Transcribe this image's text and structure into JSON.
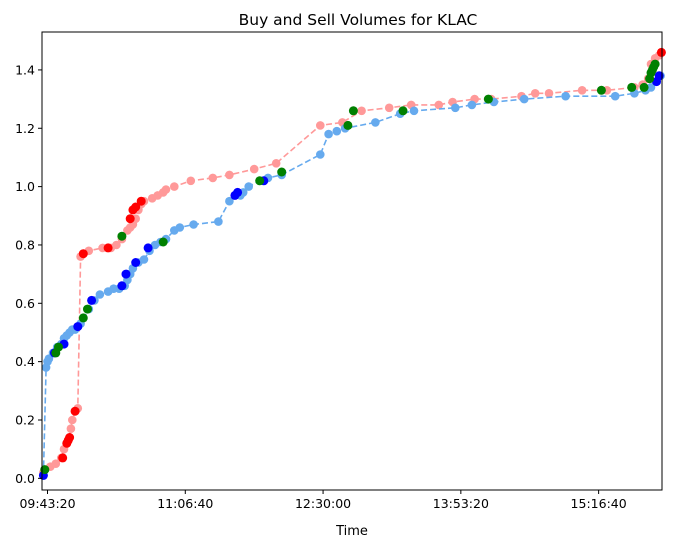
{
  "chart_data": {
    "type": "line",
    "title": "Buy and Sell Volumes for KLAC",
    "xlabel": "Time",
    "ylabel": "",
    "x_axis_unit": "seconds since midnight",
    "xlim": [
      34800,
      57300
    ],
    "ylim": [
      -0.04,
      1.53
    ],
    "x_ticks": [
      {
        "value": 35000,
        "label": "09:43:20"
      },
      {
        "value": 40000,
        "label": "11:06:40"
      },
      {
        "value": 45000,
        "label": "12:30:00"
      },
      {
        "value": 50000,
        "label": "13:53:20"
      },
      {
        "value": 55000,
        "label": "15:16:40"
      }
    ],
    "y_ticks": [
      {
        "value": 0.0,
        "label": "0.0"
      },
      {
        "value": 0.2,
        "label": "0.2"
      },
      {
        "value": 0.4,
        "label": "0.4"
      },
      {
        "value": 0.6,
        "label": "0.6"
      },
      {
        "value": 0.8,
        "label": "0.8"
      },
      {
        "value": 1.0,
        "label": "1.0"
      },
      {
        "value": 1.2,
        "label": "1.2"
      },
      {
        "value": 1.4,
        "label": "1.4"
      }
    ],
    "grid": false,
    "legend": "none",
    "series": [
      {
        "color": "#ff9999",
        "line_style": "dashed",
        "points": [
          [
            34850,
            0.02
          ],
          [
            35100,
            0.04
          ],
          [
            35300,
            0.05
          ],
          [
            35500,
            0.07
          ],
          [
            35600,
            0.1
          ],
          [
            35700,
            0.12
          ],
          [
            35750,
            0.13
          ],
          [
            35800,
            0.14
          ],
          [
            35850,
            0.17
          ],
          [
            35900,
            0.2
          ],
          [
            36000,
            0.23
          ],
          [
            36100,
            0.24
          ],
          [
            36200,
            0.76
          ],
          [
            36300,
            0.77
          ],
          [
            36500,
            0.78
          ],
          [
            37000,
            0.79
          ],
          [
            37300,
            0.79
          ],
          [
            37500,
            0.8
          ],
          [
            37700,
            0.82
          ],
          [
            37900,
            0.85
          ],
          [
            38000,
            0.86
          ],
          [
            38100,
            0.87
          ],
          [
            38200,
            0.89
          ],
          [
            38300,
            0.92
          ],
          [
            38400,
            0.94
          ],
          [
            38500,
            0.95
          ],
          [
            38800,
            0.96
          ],
          [
            39000,
            0.97
          ],
          [
            39200,
            0.98
          ],
          [
            39300,
            0.99
          ],
          [
            39600,
            1.0
          ],
          [
            40200,
            1.02
          ],
          [
            41000,
            1.03
          ],
          [
            41600,
            1.04
          ],
          [
            42500,
            1.06
          ],
          [
            43300,
            1.08
          ],
          [
            44900,
            1.21
          ],
          [
            45700,
            1.22
          ],
          [
            46400,
            1.26
          ],
          [
            47400,
            1.27
          ],
          [
            48200,
            1.28
          ],
          [
            49200,
            1.28
          ],
          [
            49700,
            1.29
          ],
          [
            50500,
            1.3
          ],
          [
            51100,
            1.3
          ],
          [
            52200,
            1.31
          ],
          [
            52700,
            1.32
          ],
          [
            53200,
            1.32
          ],
          [
            54400,
            1.33
          ],
          [
            55300,
            1.33
          ],
          [
            56300,
            1.34
          ],
          [
            56600,
            1.35
          ],
          [
            56800,
            1.37
          ],
          [
            56900,
            1.42
          ],
          [
            57050,
            1.44
          ],
          [
            57200,
            1.45
          ],
          [
            57280,
            1.46
          ]
        ]
      },
      {
        "color": "#66aaee",
        "line_style": "dashed",
        "points": [
          [
            34850,
            0.01
          ],
          [
            34950,
            0.38
          ],
          [
            35000,
            0.4
          ],
          [
            35050,
            0.41
          ],
          [
            35200,
            0.43
          ],
          [
            35350,
            0.45
          ],
          [
            35500,
            0.46
          ],
          [
            35600,
            0.48
          ],
          [
            35700,
            0.49
          ],
          [
            35800,
            0.5
          ],
          [
            35900,
            0.51
          ],
          [
            36000,
            0.51
          ],
          [
            36100,
            0.52
          ],
          [
            36200,
            0.53
          ],
          [
            36500,
            0.58
          ],
          [
            36700,
            0.61
          ],
          [
            36900,
            0.63
          ],
          [
            37200,
            0.64
          ],
          [
            37400,
            0.65
          ],
          [
            37600,
            0.65
          ],
          [
            37800,
            0.66
          ],
          [
            37900,
            0.68
          ],
          [
            38000,
            0.7
          ],
          [
            38100,
            0.72
          ],
          [
            38300,
            0.74
          ],
          [
            38500,
            0.75
          ],
          [
            38700,
            0.78
          ],
          [
            38900,
            0.8
          ],
          [
            39100,
            0.81
          ],
          [
            39300,
            0.82
          ],
          [
            39600,
            0.85
          ],
          [
            39800,
            0.86
          ],
          [
            40300,
            0.87
          ],
          [
            41200,
            0.88
          ],
          [
            41600,
            0.95
          ],
          [
            42000,
            0.97
          ],
          [
            42100,
            0.98
          ],
          [
            42300,
            1.0
          ],
          [
            42700,
            1.02
          ],
          [
            43000,
            1.03
          ],
          [
            43500,
            1.04
          ],
          [
            44900,
            1.11
          ],
          [
            45200,
            1.18
          ],
          [
            45500,
            1.19
          ],
          [
            45800,
            1.2
          ],
          [
            46900,
            1.22
          ],
          [
            47800,
            1.25
          ],
          [
            48300,
            1.26
          ],
          [
            49800,
            1.27
          ],
          [
            50400,
            1.28
          ],
          [
            51200,
            1.29
          ],
          [
            52300,
            1.3
          ],
          [
            53800,
            1.31
          ],
          [
            55600,
            1.31
          ],
          [
            56300,
            1.32
          ],
          [
            56700,
            1.33
          ],
          [
            56900,
            1.34
          ],
          [
            57100,
            1.36
          ],
          [
            57250,
            1.38
          ]
        ]
      }
    ],
    "markers": {
      "red": [
        [
          35550,
          0.07
        ],
        [
          35700,
          0.12
        ],
        [
          35750,
          0.13
        ],
        [
          35800,
          0.14
        ],
        [
          36000,
          0.23
        ],
        [
          36300,
          0.77
        ],
        [
          37200,
          0.79
        ],
        [
          38000,
          0.89
        ],
        [
          38100,
          0.92
        ],
        [
          38200,
          0.93
        ],
        [
          38400,
          0.95
        ],
        [
          57280,
          1.46
        ]
      ],
      "blue": [
        [
          34850,
          0.01
        ],
        [
          35250,
          0.43
        ],
        [
          35600,
          0.46
        ],
        [
          36100,
          0.52
        ],
        [
          36600,
          0.61
        ],
        [
          37700,
          0.66
        ],
        [
          37850,
          0.7
        ],
        [
          38200,
          0.74
        ],
        [
          38650,
          0.79
        ],
        [
          41800,
          0.97
        ],
        [
          41900,
          0.98
        ],
        [
          42850,
          1.02
        ],
        [
          57100,
          1.36
        ],
        [
          57200,
          1.38
        ]
      ],
      "green": [
        [
          34900,
          0.03
        ],
        [
          35300,
          0.43
        ],
        [
          35400,
          0.45
        ],
        [
          36300,
          0.55
        ],
        [
          36450,
          0.58
        ],
        [
          37700,
          0.83
        ],
        [
          39200,
          0.81
        ],
        [
          42700,
          1.02
        ],
        [
          43500,
          1.05
        ],
        [
          45900,
          1.21
        ],
        [
          46100,
          1.26
        ],
        [
          47900,
          1.26
        ],
        [
          51000,
          1.3
        ],
        [
          55100,
          1.33
        ],
        [
          56200,
          1.34
        ],
        [
          56650,
          1.34
        ],
        [
          56850,
          1.37
        ],
        [
          56900,
          1.39
        ],
        [
          56950,
          1.4
        ],
        [
          57000,
          1.41
        ],
        [
          57050,
          1.42
        ]
      ]
    },
    "colors": {
      "sell_line": "#ff9999",
      "buy_line": "#66aaee",
      "red_marker": "#ff0000",
      "blue_marker": "#0000ff",
      "green_marker": "#008000"
    }
  }
}
